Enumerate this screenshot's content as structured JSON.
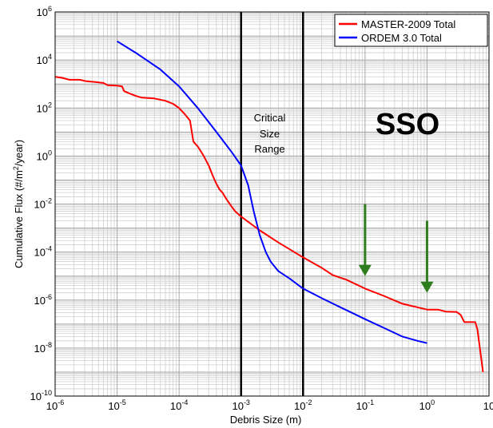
{
  "chart_data": {
    "type": "line",
    "xscale": "log",
    "yscale": "log",
    "xlim": [
      1e-06,
      10
    ],
    "ylim": [
      1e-10,
      1000000.0
    ],
    "xticks": [
      {
        "base": "10",
        "exp": "-6",
        "value": 1e-06
      },
      {
        "base": "10",
        "exp": "-5",
        "value": 1e-05
      },
      {
        "base": "10",
        "exp": "-4",
        "value": 0.0001
      },
      {
        "base": "10",
        "exp": "-3",
        "value": 0.001
      },
      {
        "base": "10",
        "exp": "-2",
        "value": 0.01
      },
      {
        "base": "10",
        "exp": "-1",
        "value": 0.1
      },
      {
        "base": "10",
        "exp": "0",
        "value": 1
      },
      {
        "base": "10",
        "exp": "",
        "value": 10
      }
    ],
    "yticks": [
      {
        "base": "10",
        "exp": "-10",
        "value": 1e-10
      },
      {
        "base": "10",
        "exp": "-8",
        "value": 1e-08
      },
      {
        "base": "10",
        "exp": "-6",
        "value": 1e-06
      },
      {
        "base": "10",
        "exp": "-4",
        "value": 0.0001
      },
      {
        "base": "10",
        "exp": "-2",
        "value": 0.01
      },
      {
        "base": "10",
        "exp": "0",
        "value": 1
      },
      {
        "base": "10",
        "exp": "2",
        "value": 100
      },
      {
        "base": "10",
        "exp": "4",
        "value": 10000
      },
      {
        "base": "10",
        "exp": "6",
        "value": 1000000
      }
    ],
    "xlabel": "Debris Size (m)",
    "ylabel": {
      "prefix": "Cumulative Flux (#/m",
      "sup": "2",
      "suffix": "/year)"
    },
    "grid": true,
    "legend_position": "top-right",
    "series": [
      {
        "name": "MASTER-2009 Total",
        "color": "#ff0000",
        "points": [
          [
            1e-06,
            2000.0
          ],
          [
            1.3e-06,
            1800.0
          ],
          [
            1.7e-06,
            1500.0
          ],
          [
            2.5e-06,
            1500.0
          ],
          [
            3.2e-06,
            1300.0
          ],
          [
            4.5e-06,
            1200.0
          ],
          [
            6e-06,
            1100.0
          ],
          [
            7e-06,
            900
          ],
          [
            1e-05,
            850
          ],
          [
            1.2e-05,
            800
          ],
          [
            1.3e-05,
            500
          ],
          [
            1.6e-05,
            400
          ],
          [
            2e-05,
            320
          ],
          [
            2.5e-05,
            270
          ],
          [
            4e-05,
            250
          ],
          [
            6e-05,
            200
          ],
          [
            8e-05,
            150
          ],
          [
            0.0001,
            100
          ],
          [
            0.00012,
            60
          ],
          [
            0.00015,
            30
          ],
          [
            0.00017,
            4
          ],
          [
            0.0002,
            2.5
          ],
          [
            0.00025,
            1
          ],
          [
            0.0003,
            0.4
          ],
          [
            0.00035,
            0.15
          ],
          [
            0.0004,
            0.07
          ],
          [
            0.00045,
            0.04
          ],
          [
            0.0005,
            0.03
          ],
          [
            0.00055,
            0.02
          ],
          [
            0.0006,
            0.014
          ],
          [
            0.0007,
            0.008
          ],
          [
            0.0008,
            0.005
          ],
          [
            0.001,
            0.003
          ],
          [
            0.002,
            0.0008
          ],
          [
            0.004,
            0.00025
          ],
          [
            0.01,
            6e-05
          ],
          [
            0.02,
            2.2e-05
          ],
          [
            0.03,
            1.1e-05
          ],
          [
            0.05,
            7e-06
          ],
          [
            0.1,
            3e-06
          ],
          [
            0.2,
            1.5e-06
          ],
          [
            0.4,
            7e-07
          ],
          [
            0.7,
            5e-07
          ],
          [
            1,
            4e-07
          ],
          [
            1.5,
            4e-07
          ],
          [
            2,
            3.3e-07
          ],
          [
            3,
            3.2e-07
          ],
          [
            3.5,
            2.4e-07
          ],
          [
            4,
            1.2e-07
          ],
          [
            6,
            1.2e-07
          ],
          [
            6.5,
            6e-08
          ],
          [
            8,
            1e-09
          ]
        ]
      },
      {
        "name": "ORDEM 3.0 Total",
        "color": "#0000ff",
        "points": [
          [
            1e-05,
            60000.0
          ],
          [
            2e-05,
            20000.0
          ],
          [
            5e-05,
            4000.0
          ],
          [
            0.0001,
            800
          ],
          [
            0.0002,
            100
          ],
          [
            0.0004,
            10
          ],
          [
            0.0007,
            1.5
          ],
          [
            0.001,
            0.4
          ],
          [
            0.0013,
            0.06
          ],
          [
            0.0016,
            0.005
          ],
          [
            0.002,
            0.0005
          ],
          [
            0.0025,
            0.0001
          ],
          [
            0.003,
            4e-05
          ],
          [
            0.004,
            1.6e-05
          ],
          [
            0.006,
            8e-06
          ],
          [
            0.01,
            3e-06
          ],
          [
            0.02,
            1.2e-06
          ],
          [
            0.04,
            5e-07
          ],
          [
            0.07,
            2.5e-07
          ],
          [
            0.1,
            1.6e-07
          ],
          [
            0.2,
            7e-08
          ],
          [
            0.4,
            3e-08
          ],
          [
            0.7,
            2e-08
          ],
          [
            1,
            1.6e-08
          ]
        ]
      }
    ],
    "annotations": {
      "critical_lines_x": [
        0.001,
        0.01
      ],
      "critical_label": [
        "Critical",
        "Size",
        "Range"
      ],
      "orbit_label": "SSO",
      "arrows_x": [
        0.1,
        1
      ]
    }
  }
}
